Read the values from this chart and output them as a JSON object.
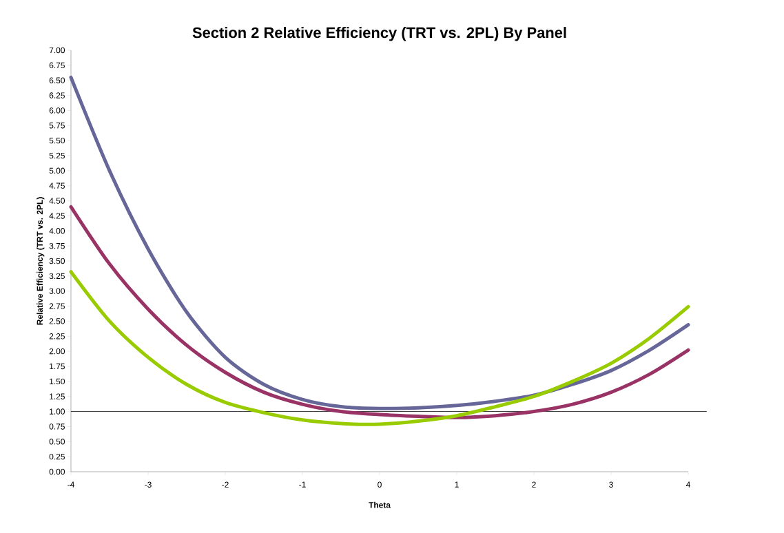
{
  "chart_data": {
    "type": "line",
    "title": "Section 2 Relative Efficiency (TRT vs. 2PL) By Panel",
    "xlabel": "Theta",
    "ylabel": "Relative Efficiency (TRT vs. 2PL)",
    "x": [
      -4,
      -3.5,
      -3,
      -2.5,
      -2,
      -1.5,
      -1,
      -0.5,
      0,
      0.5,
      1,
      1.5,
      2,
      2.5,
      3,
      3.5,
      4
    ],
    "series": [
      {
        "color": "#666699",
        "values": [
          6.55,
          5.0,
          3.7,
          2.65,
          1.9,
          1.45,
          1.2,
          1.08,
          1.05,
          1.06,
          1.1,
          1.17,
          1.27,
          1.45,
          1.68,
          2.02,
          2.44
        ]
      },
      {
        "color": "#993366",
        "values": [
          4.4,
          3.45,
          2.7,
          2.1,
          1.65,
          1.32,
          1.12,
          1.0,
          0.95,
          0.92,
          0.9,
          0.93,
          1.0,
          1.12,
          1.32,
          1.62,
          2.02
        ]
      },
      {
        "color": "#99cc00",
        "values": [
          3.32,
          2.5,
          1.9,
          1.45,
          1.15,
          0.98,
          0.86,
          0.8,
          0.79,
          0.84,
          0.93,
          1.08,
          1.25,
          1.5,
          1.8,
          2.22,
          2.74
        ]
      }
    ],
    "xlim": [
      -4,
      4
    ],
    "xticks": [
      -4,
      -3,
      -2,
      -1,
      0,
      1,
      2,
      3,
      4
    ],
    "ylim": [
      0,
      7
    ],
    "yticks": [
      {
        "value": 0,
        "label": "0.00"
      },
      {
        "value": 0.25,
        "label": "0.25"
      },
      {
        "value": 0.5,
        "label": "0.50"
      },
      {
        "value": 0.75,
        "label": "0.75"
      },
      {
        "value": 1,
        "label": "1.00"
      },
      {
        "value": 1.25,
        "label": "1.25"
      },
      {
        "value": 1.5,
        "label": "1.50"
      },
      {
        "value": 1.75,
        "label": "1.75"
      },
      {
        "value": 2,
        "label": "2.00"
      },
      {
        "value": 2.25,
        "label": "2.25"
      },
      {
        "value": 2.5,
        "label": "2.50"
      },
      {
        "value": 2.75,
        "label": "2.75"
      },
      {
        "value": 3,
        "label": "3.00"
      },
      {
        "value": 3.25,
        "label": "3.25"
      },
      {
        "value": 3.5,
        "label": "3.50"
      },
      {
        "value": 3.75,
        "label": "3.75"
      },
      {
        "value": 4,
        "label": "4.00"
      },
      {
        "value": 4.25,
        "label": "4.25"
      },
      {
        "value": 4.5,
        "label": "4.50"
      },
      {
        "value": 4.75,
        "label": "4.75"
      },
      {
        "value": 5,
        "label": "5.00"
      },
      {
        "value": 5.25,
        "label": "5.25"
      },
      {
        "value": 5.5,
        "label": "5.50"
      },
      {
        "value": 5.75,
        "label": "5.75"
      },
      {
        "value": 6,
        "label": "6.00"
      },
      {
        "value": 6.25,
        "label": "6.25"
      },
      {
        "value": 6.5,
        "label": "6.50"
      },
      {
        "value": 6.75,
        "label": "6.75"
      },
      {
        "value": 7,
        "label": "7.00"
      }
    ],
    "ref_lines": [
      {
        "axis": "y",
        "value": 1,
        "color": "#000000"
      }
    ],
    "grid": false,
    "legend": false,
    "marker": "none",
    "line_style": "solid"
  }
}
